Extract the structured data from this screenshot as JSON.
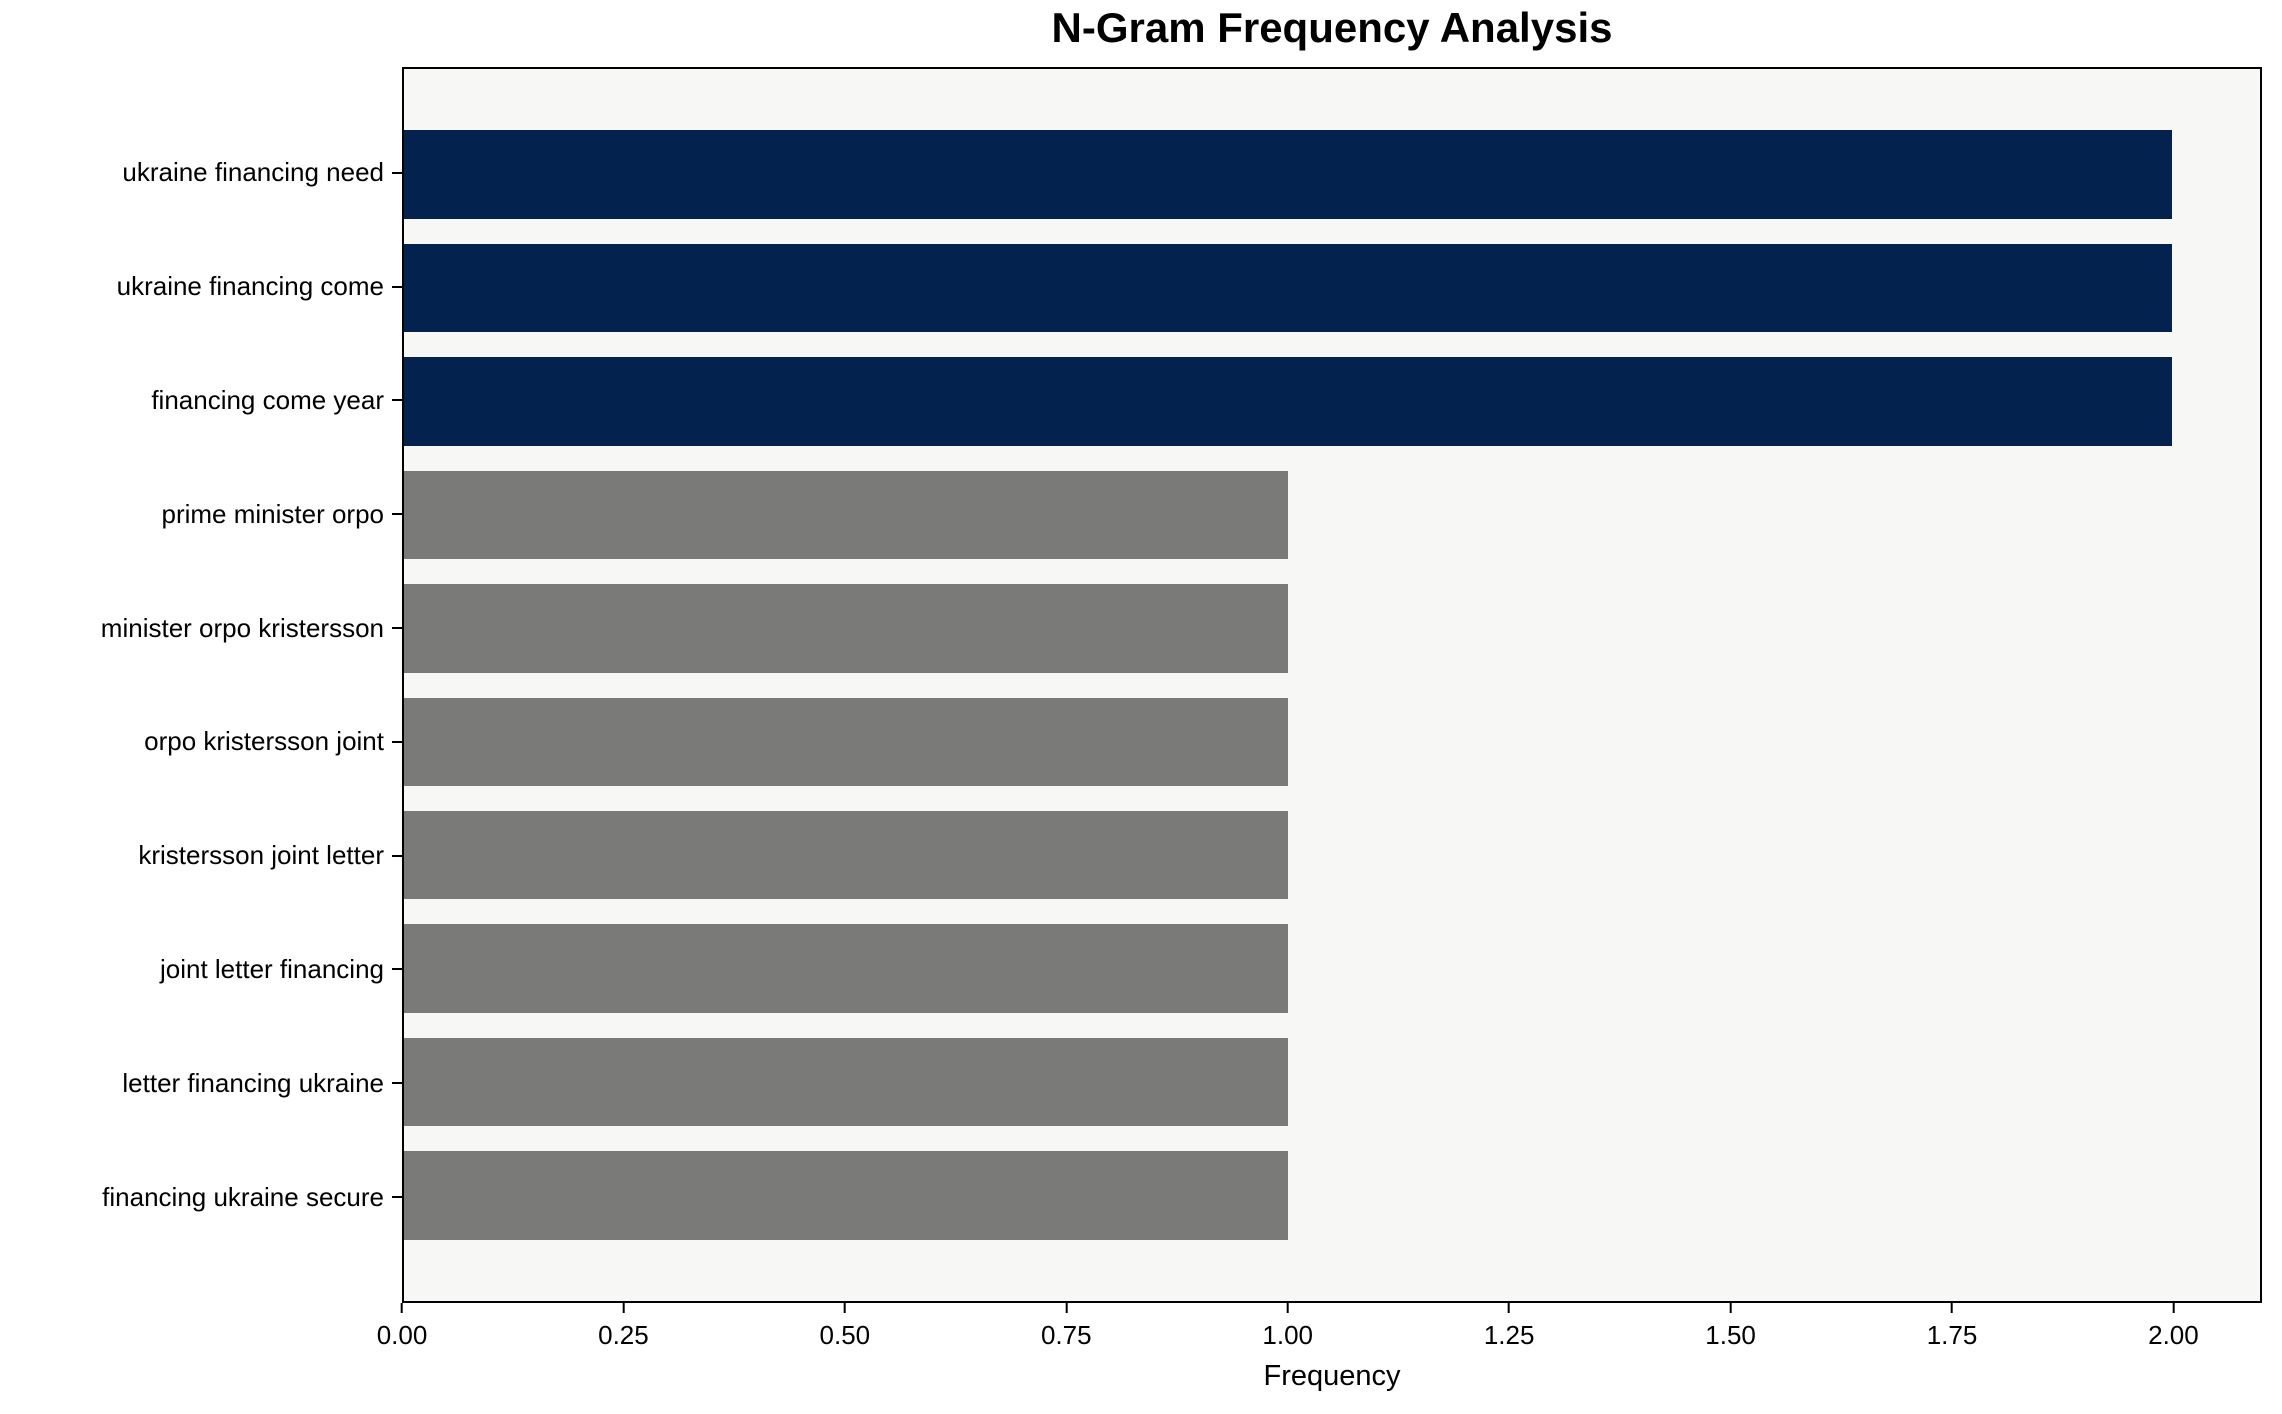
{
  "chart_data": {
    "type": "bar",
    "orientation": "horizontal",
    "title": "N-Gram Frequency Analysis",
    "xlabel": "Frequency",
    "ylabel": "",
    "categories": [
      "ukraine financing need",
      "ukraine financing come",
      "financing come year",
      "prime minister orpo",
      "minister orpo kristersson",
      "orpo kristersson joint",
      "kristersson joint letter",
      "joint letter financing",
      "letter financing ukraine",
      "financing ukraine secure"
    ],
    "values": [
      2,
      2,
      2,
      1,
      1,
      1,
      1,
      1,
      1,
      1
    ],
    "bar_colors": [
      "#03234e",
      "#03234e",
      "#03234e",
      "#7a7a78",
      "#7a7a78",
      "#7a7a78",
      "#7a7a78",
      "#7a7a78",
      "#7a7a78",
      "#7a7a78"
    ],
    "xlim": [
      0,
      2.1
    ],
    "xtick_values": [
      0,
      0.25,
      0.5,
      0.75,
      1.0,
      1.25,
      1.5,
      1.75,
      2.0
    ],
    "xtick_labels": [
      "0.00",
      "0.25",
      "0.50",
      "0.75",
      "1.00",
      "1.25",
      "1.50",
      "1.75",
      "2.00"
    ],
    "grid": false,
    "legend_position": "none",
    "colors": {
      "highlight_navy": "#03234e",
      "default_gray": "#7a7a78",
      "plot_background": "#f7f7f6",
      "figure_background": "#ffffff",
      "axis_line": "#000000",
      "text": "#000000"
    }
  }
}
